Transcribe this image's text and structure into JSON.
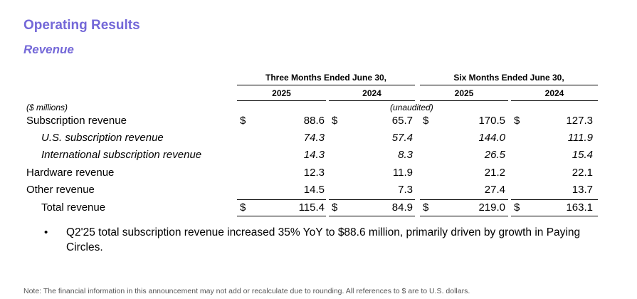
{
  "title": "Operating Results",
  "subtitle": "Revenue",
  "table": {
    "period_headers": [
      "Three Months Ended June 30,",
      "Six Months Ended June 30,"
    ],
    "year_headers": [
      "2025",
      "2024",
      "2025",
      "2024"
    ],
    "units_label": "($ millions)",
    "audit_label": "(unaudited)",
    "currency_symbol": "$",
    "rows": [
      {
        "label": "Subscription revenue",
        "values": [
          "88.6",
          "65.7",
          "170.5",
          "127.3"
        ]
      },
      {
        "label": "U.S. subscription revenue",
        "values": [
          "74.3",
          "57.4",
          "144.0",
          "111.9"
        ]
      },
      {
        "label": "International subscription revenue",
        "values": [
          "14.3",
          "8.3",
          "26.5",
          "15.4"
        ]
      },
      {
        "label": "Hardware revenue",
        "values": [
          "12.3",
          "11.9",
          "21.2",
          "22.1"
        ]
      },
      {
        "label": "Other revenue",
        "values": [
          "14.5",
          "7.3",
          "27.4",
          "13.7"
        ]
      },
      {
        "label": "Total revenue",
        "values": [
          "115.4",
          "84.9",
          "219.0",
          "163.1"
        ]
      }
    ]
  },
  "bullet": {
    "symbol": "•",
    "text": "Q2'25 total subscription revenue increased 35% YoY to $88.6 million, primarily driven by growth in Paying Circles."
  },
  "footnote": "Note: The financial information in this announcement may not add or recalculate due to rounding. All references to $ are to U.S. dollars."
}
